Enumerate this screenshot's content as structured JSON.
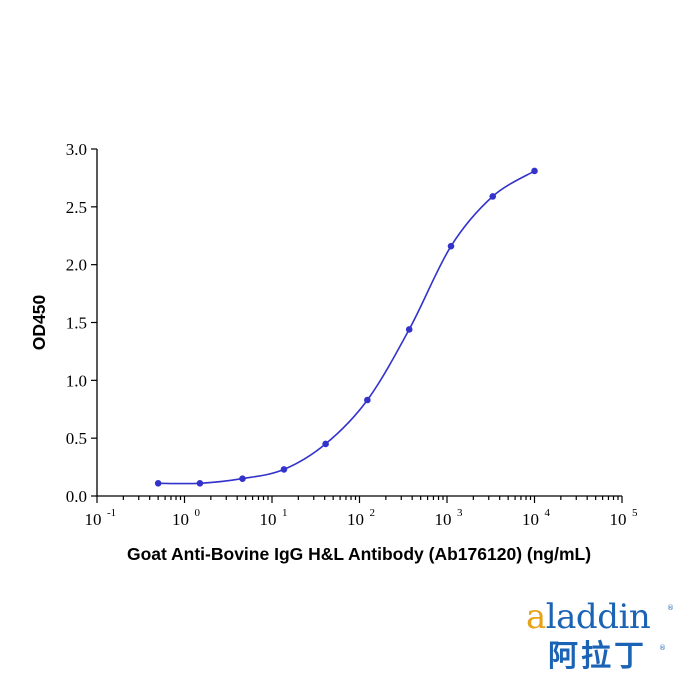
{
  "chart_data": {
    "type": "scatter",
    "title": "",
    "xlabel": "Goat Anti-Bovine IgG H&L Antibody (Ab176120) (ng/mL)",
    "ylabel": "OD450",
    "x_scale": "log",
    "xlim": [
      0.1,
      100000
    ],
    "ylim": [
      0.0,
      3.0
    ],
    "x_ticks": [
      {
        "base": "10",
        "exp": "-1"
      },
      {
        "base": "10",
        "exp": "0"
      },
      {
        "base": "10",
        "exp": "1"
      },
      {
        "base": "10",
        "exp": "2"
      },
      {
        "base": "10",
        "exp": "3"
      },
      {
        "base": "10",
        "exp": "4"
      },
      {
        "base": "10",
        "exp": "5"
      }
    ],
    "y_ticks": [
      "0.0",
      "0.5",
      "1.0",
      "1.5",
      "2.0",
      "2.5",
      "3.0"
    ],
    "grid": false,
    "legend": "none",
    "series": [
      {
        "x": [
          0.5,
          1.5,
          4.6,
          13.7,
          41,
          123,
          370,
          1111,
          3333,
          10000
        ],
        "y": [
          0.11,
          0.11,
          0.15,
          0.23,
          0.45,
          0.83,
          1.44,
          2.16,
          2.59,
          2.81
        ],
        "color": "#3333cc",
        "fit": "4PL sigmoid curve"
      }
    ]
  },
  "logo": {
    "word_accent": "a",
    "word_rest": "laddin",
    "registered": "®",
    "chinese": "阿拉丁"
  }
}
